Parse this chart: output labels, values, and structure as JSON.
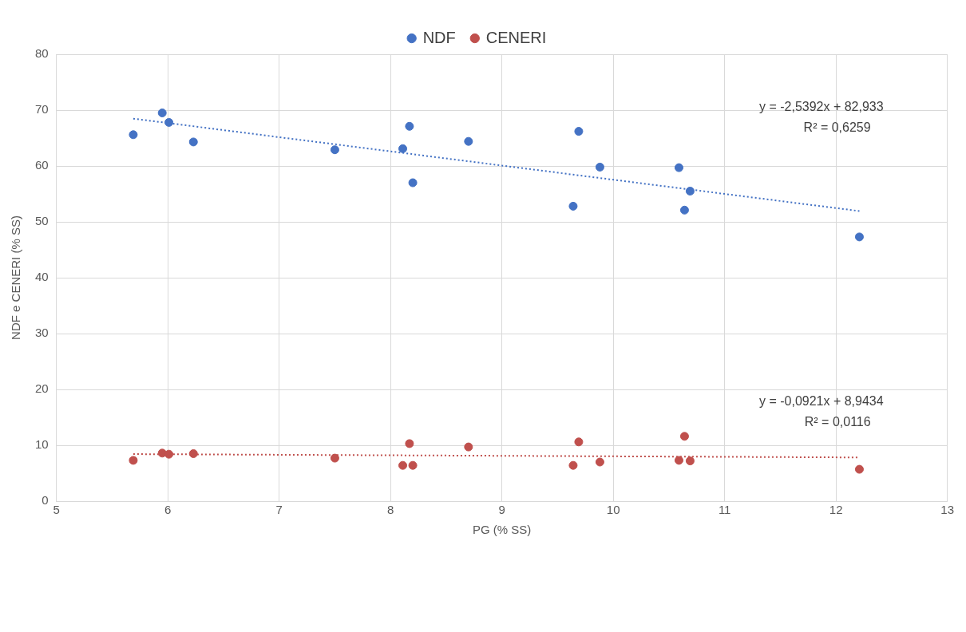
{
  "chart_data": {
    "type": "scatter",
    "xlabel": "PG (% SS)",
    "ylabel": "NDF e CENERI (% SS)",
    "xlim": [
      5,
      13
    ],
    "xticks": [
      5,
      6,
      7,
      8,
      9,
      10,
      11,
      12,
      13
    ],
    "ylim": [
      0,
      80
    ],
    "yticks": [
      0,
      10,
      20,
      30,
      40,
      50,
      60,
      70,
      80
    ],
    "grid": true,
    "legend": "top",
    "marker": "circle",
    "series": [
      {
        "name": "NDF",
        "color": "#4472c4",
        "x": [
          5.69,
          5.95,
          6.01,
          6.23,
          7.5,
          8.11,
          8.17,
          8.2,
          8.7,
          9.64,
          9.69,
          9.88,
          10.59,
          10.64,
          10.69,
          12.21
        ],
        "values": [
          65.6,
          69.5,
          67.8,
          64.3,
          62.9,
          63.1,
          67.1,
          57.0,
          64.4,
          52.8,
          66.2,
          59.8,
          59.7,
          52.1,
          55.5,
          47.3
        ]
      },
      {
        "name": "CENERI",
        "color": "#c0504d",
        "x": [
          5.69,
          5.95,
          6.01,
          6.23,
          7.5,
          8.11,
          8.17,
          8.2,
          8.7,
          9.64,
          9.69,
          9.88,
          10.59,
          10.64,
          10.69,
          12.21
        ],
        "values": [
          7.3,
          8.6,
          8.4,
          8.5,
          7.7,
          6.4,
          10.3,
          6.4,
          9.7,
          6.4,
          10.6,
          7.0,
          7.3,
          11.6,
          7.2,
          5.7
        ]
      },
      {
        "type": "line",
        "color": "#4472c4",
        "line_style": "dotted",
        "marker": "none",
        "x": [
          5.69,
          12.21
        ],
        "values": [
          68.48,
          51.93
        ]
      },
      {
        "type": "line",
        "color": "#c0504d",
        "line_style": "dotted",
        "marker": "none",
        "x": [
          5.69,
          12.21
        ],
        "values": [
          8.42,
          7.82
        ]
      }
    ],
    "annotations": [
      "y = -2,5392x + 82,933",
      "R² = 0,6259",
      "y = -0,0921x + 8,9434",
      "R² = 0,0116"
    ]
  }
}
